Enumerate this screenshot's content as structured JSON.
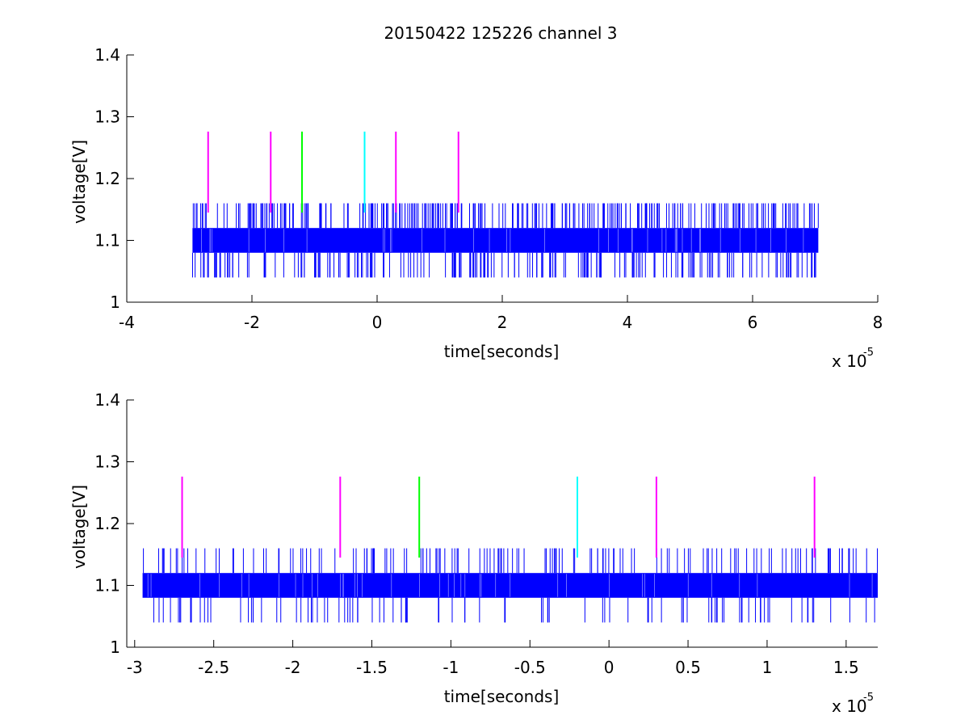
{
  "figure": {
    "title": "20150422 125226 channel 3"
  },
  "chart_data": [
    {
      "type": "line",
      "title": "20150422 125226 channel 3",
      "xlabel": "time[seconds]",
      "ylabel": "voltage[V]",
      "x_multiplier_base": "x 10",
      "x_multiplier_exp": "-5",
      "xlim": [
        -4,
        8
      ],
      "ylim": [
        1,
        1.4
      ],
      "xticks": [
        -4,
        -2,
        0,
        2,
        4,
        6,
        8
      ],
      "xtick_labels": [
        "-4",
        "-2",
        "0",
        "2",
        "4",
        "6",
        "8"
      ],
      "yticks": [
        1,
        1.1,
        1.2,
        1.3,
        1.4
      ],
      "ytick_labels": [
        "1",
        "1.1",
        "1.2",
        "1.3",
        "1.4"
      ],
      "series": [
        {
          "color": "#0000ff",
          "x_range": [
            -2.95,
            7.05
          ],
          "baseline_band": [
            1.08,
            1.12
          ],
          "spike_levels": [
            1.04,
            1.16
          ],
          "spike_count_up": 290,
          "spike_count_down": 210
        }
      ],
      "markers": [
        {
          "x": -2.7,
          "color": "#ff00ff",
          "y_range": [
            1.145,
            1.276
          ]
        },
        {
          "x": -1.7,
          "color": "#ff00ff",
          "y_range": [
            1.145,
            1.276
          ]
        },
        {
          "x": -1.2,
          "color": "#00ff00",
          "y_range": [
            1.145,
            1.276
          ]
        },
        {
          "x": -0.2,
          "color": "#00ffff",
          "y_range": [
            1.145,
            1.276
          ]
        },
        {
          "x": 0.3,
          "color": "#ff00ff",
          "y_range": [
            1.145,
            1.276
          ]
        },
        {
          "x": 1.3,
          "color": "#ff00ff",
          "y_range": [
            1.145,
            1.276
          ]
        }
      ]
    },
    {
      "type": "line",
      "title": "",
      "xlabel": "time[seconds]",
      "ylabel": "voltage[V]",
      "x_multiplier_base": "x 10",
      "x_multiplier_exp": "-5",
      "xlim": [
        -3.05,
        1.7
      ],
      "ylim": [
        1,
        1.4
      ],
      "xticks": [
        -3,
        -2.5,
        -2,
        -1.5,
        -1,
        -0.5,
        0,
        0.5,
        1,
        1.5
      ],
      "xtick_labels": [
        "-3",
        "-2.5",
        "-2",
        "-1.5",
        "-1",
        "-0.5",
        "0",
        "0.5",
        "1",
        "1.5"
      ],
      "yticks": [
        1,
        1.1,
        1.2,
        1.3,
        1.4
      ],
      "ytick_labels": [
        "1",
        "1.1",
        "1.2",
        "1.3",
        "1.4"
      ],
      "series": [
        {
          "color": "#0000ff",
          "x_range": [
            -2.95,
            1.7
          ],
          "baseline_band": [
            1.08,
            1.12
          ],
          "spike_levels": [
            1.04,
            1.16
          ],
          "spike_count_up": 150,
          "spike_count_down": 100
        }
      ],
      "markers": [
        {
          "x": -2.7,
          "color": "#ff00ff",
          "y_range": [
            1.145,
            1.276
          ]
        },
        {
          "x": -1.7,
          "color": "#ff00ff",
          "y_range": [
            1.145,
            1.276
          ]
        },
        {
          "x": -1.2,
          "color": "#00ff00",
          "y_range": [
            1.145,
            1.276
          ]
        },
        {
          "x": -0.2,
          "color": "#00ffff",
          "y_range": [
            1.145,
            1.276
          ]
        },
        {
          "x": 0.3,
          "color": "#ff00ff",
          "y_range": [
            1.145,
            1.276
          ]
        },
        {
          "x": 1.3,
          "color": "#ff00ff",
          "y_range": [
            1.145,
            1.276
          ]
        }
      ]
    }
  ]
}
